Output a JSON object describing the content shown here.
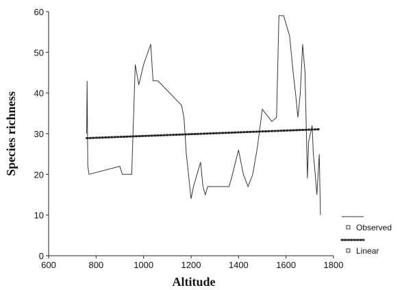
{
  "chart_data": {
    "type": "line",
    "xlabel": "Altitude",
    "ylabel": "Species richness",
    "xlim": [
      600,
      1800
    ],
    "ylim": [
      0,
      60
    ],
    "x_ticks": [
      600,
      800,
      1000,
      1200,
      1400,
      1600,
      1800
    ],
    "y_ticks": [
      0,
      10,
      20,
      30,
      40,
      50,
      60
    ],
    "grid": false,
    "legend_position": "bottom-right",
    "series": [
      {
        "name": "Observed",
        "style": "solid",
        "color": "#333333",
        "points": [
          [
            760,
            30
          ],
          [
            762,
            43
          ],
          [
            765,
            22
          ],
          [
            770,
            20
          ],
          [
            900,
            22
          ],
          [
            910,
            20
          ],
          [
            950,
            20
          ],
          [
            965,
            47
          ],
          [
            980,
            42
          ],
          [
            1000,
            47
          ],
          [
            1030,
            52
          ],
          [
            1040,
            43
          ],
          [
            1060,
            43
          ],
          [
            1160,
            37
          ],
          [
            1170,
            34
          ],
          [
            1180,
            25
          ],
          [
            1200,
            14
          ],
          [
            1210,
            17
          ],
          [
            1240,
            23
          ],
          [
            1250,
            17
          ],
          [
            1260,
            15
          ],
          [
            1270,
            17
          ],
          [
            1360,
            17
          ],
          [
            1370,
            19
          ],
          [
            1400,
            26
          ],
          [
            1420,
            20
          ],
          [
            1440,
            17
          ],
          [
            1460,
            20
          ],
          [
            1480,
            27
          ],
          [
            1500,
            36
          ],
          [
            1540,
            33
          ],
          [
            1560,
            34
          ],
          [
            1570,
            59
          ],
          [
            1590,
            59
          ],
          [
            1615,
            54
          ],
          [
            1630,
            45
          ],
          [
            1640,
            40
          ],
          [
            1650,
            34
          ],
          [
            1660,
            40
          ],
          [
            1670,
            52
          ],
          [
            1680,
            45
          ],
          [
            1690,
            19
          ],
          [
            1695,
            28
          ],
          [
            1710,
            32
          ],
          [
            1715,
            25
          ],
          [
            1720,
            22
          ],
          [
            1730,
            15
          ],
          [
            1740,
            25
          ],
          [
            1745,
            10
          ]
        ]
      },
      {
        "name": "Linear",
        "style": "dotted",
        "color": "#222222",
        "points": [
          [
            760,
            28.9
          ],
          [
            1745,
            31.1
          ]
        ]
      }
    ]
  }
}
